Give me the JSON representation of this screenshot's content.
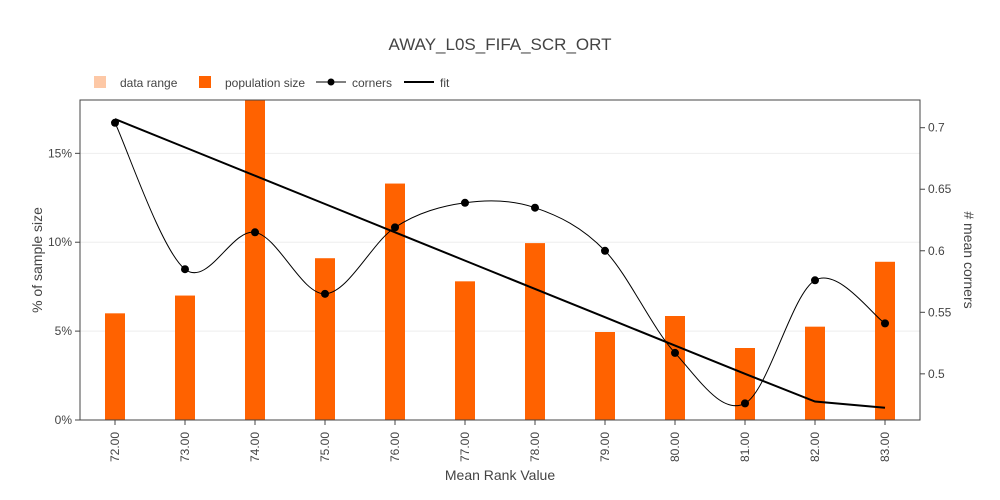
{
  "chart_data": {
    "type": "bar",
    "title": "AWAY_L0S_FIFA_SCR_ORT",
    "xlabel": "Mean Rank Value",
    "ylabel": "% of sample size",
    "y2label": "# mean corners",
    "categories": [
      "72.00",
      "73.00",
      "74.00",
      "75.00",
      "76.00",
      "77.00",
      "78.00",
      "79.00",
      "80.00",
      "81.00",
      "82.00",
      "83.00"
    ],
    "series": [
      {
        "name": "population size",
        "type": "bar",
        "axis": "y",
        "values": [
          6.0,
          7.0,
          18.0,
          9.1,
          13.3,
          7.8,
          9.95,
          4.95,
          5.85,
          4.05,
          5.25,
          8.9
        ]
      },
      {
        "name": "corners",
        "type": "line",
        "axis": "y2",
        "values": [
          0.704,
          0.585,
          0.615,
          0.565,
          0.619,
          0.639,
          0.635,
          0.6,
          0.517,
          0.476,
          0.576,
          0.541
        ]
      },
      {
        "name": "fit",
        "type": "line",
        "axis": "y2",
        "values": [
          0.707,
          0.684,
          0.661,
          0.638,
          0.615,
          0.592,
          0.569,
          0.546,
          0.523,
          0.5,
          0.4775,
          0.4725
        ]
      }
    ],
    "legend": [
      "data range",
      "population size",
      "corners",
      "fit"
    ],
    "legend_position": "top-left",
    "ylim": [
      0,
      18
    ],
    "y_ticks": [
      0,
      5,
      10,
      15
    ],
    "y_tick_labels": [
      "0%",
      "5%",
      "10%",
      "15%"
    ],
    "y2lim": [
      0.4625,
      0.7225
    ],
    "y2_ticks": [
      0.5,
      0.55,
      0.6,
      0.65,
      0.7
    ],
    "y2_tick_labels": [
      "0.5",
      "0.55",
      "0.6",
      "0.65",
      "0.7"
    ],
    "grid": true,
    "colors": {
      "bar": "#ff6200",
      "data_range": "#fdc8a6",
      "line": "#000000",
      "grid": "#eeeeee",
      "axis": "#444444"
    }
  }
}
